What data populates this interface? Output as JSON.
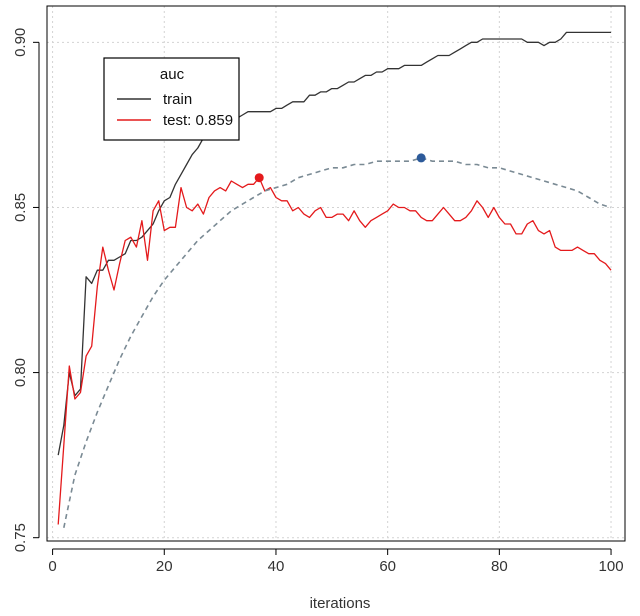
{
  "chart_data": {
    "type": "line",
    "title": "",
    "xlabel": "iterations",
    "ylabel": "",
    "xlim": [
      -1,
      102.5
    ],
    "ylim": [
      0.749,
      0.911
    ],
    "grid": true,
    "x_ticks": [
      0,
      20,
      40,
      60,
      80,
      100
    ],
    "y_ticks": [
      0.75,
      0.8,
      0.85,
      0.9
    ],
    "y_tick_labels": [
      "0.75",
      "0.80",
      "0.85",
      "0.90"
    ],
    "legend": {
      "title": "auc",
      "placement": "top-left",
      "entries": [
        {
          "label": "train",
          "color": "#333333"
        },
        {
          "label": "test: 0.859",
          "color": "#e41a1c"
        }
      ]
    },
    "series": [
      {
        "name": "train",
        "color": "#333333",
        "x_start": 1,
        "values": [
          0.775,
          0.784,
          0.8,
          0.793,
          0.795,
          0.829,
          0.827,
          0.831,
          0.831,
          0.834,
          0.834,
          0.835,
          0.836,
          0.84,
          0.84,
          0.841,
          0.843,
          0.845,
          0.849,
          0.852,
          0.853,
          0.857,
          0.86,
          0.863,
          0.866,
          0.868,
          0.871,
          0.874,
          0.876,
          0.876,
          0.874,
          0.876,
          0.877,
          0.878,
          0.879,
          0.879,
          0.879,
          0.879,
          0.879,
          0.88,
          0.88,
          0.881,
          0.882,
          0.882,
          0.882,
          0.884,
          0.884,
          0.885,
          0.885,
          0.886,
          0.886,
          0.887,
          0.888,
          0.888,
          0.889,
          0.89,
          0.89,
          0.891,
          0.891,
          0.892,
          0.892,
          0.892,
          0.893,
          0.893,
          0.893,
          0.893,
          0.894,
          0.895,
          0.896,
          0.896,
          0.896,
          0.897,
          0.898,
          0.899,
          0.9,
          0.9,
          0.901,
          0.901,
          0.901,
          0.901,
          0.901,
          0.901,
          0.901,
          0.901,
          0.9,
          0.9,
          0.9,
          0.899,
          0.9,
          0.9,
          0.901,
          0.903,
          0.903,
          0.903,
          0.903,
          0.903,
          0.903,
          0.903,
          0.903,
          0.903
        ]
      },
      {
        "name": "test",
        "color": "#e41a1c",
        "x_start": 1,
        "values": [
          0.754,
          0.778,
          0.802,
          0.792,
          0.794,
          0.805,
          0.808,
          0.826,
          0.838,
          0.831,
          0.825,
          0.833,
          0.84,
          0.841,
          0.838,
          0.846,
          0.834,
          0.849,
          0.852,
          0.843,
          0.844,
          0.844,
          0.856,
          0.85,
          0.849,
          0.851,
          0.848,
          0.853,
          0.855,
          0.856,
          0.855,
          0.858,
          0.857,
          0.856,
          0.857,
          0.857,
          0.859,
          0.855,
          0.856,
          0.853,
          0.852,
          0.852,
          0.849,
          0.85,
          0.848,
          0.847,
          0.849,
          0.85,
          0.847,
          0.847,
          0.848,
          0.848,
          0.846,
          0.849,
          0.846,
          0.844,
          0.846,
          0.847,
          0.848,
          0.849,
          0.851,
          0.85,
          0.85,
          0.849,
          0.849,
          0.847,
          0.846,
          0.846,
          0.848,
          0.85,
          0.848,
          0.846,
          0.846,
          0.847,
          0.849,
          0.852,
          0.85,
          0.847,
          0.85,
          0.847,
          0.845,
          0.845,
          0.842,
          0.842,
          0.845,
          0.846,
          0.843,
          0.842,
          0.843,
          0.838,
          0.837,
          0.837,
          0.837,
          0.838,
          0.837,
          0.836,
          0.836,
          0.834,
          0.833,
          0.831
        ]
      },
      {
        "name": "",
        "color": "#7a8a94",
        "dashed": true,
        "x": [
          2,
          4,
          6,
          8,
          10,
          12,
          14,
          16,
          18,
          20,
          22,
          24,
          26,
          28,
          30,
          32,
          34,
          36,
          38,
          40,
          42,
          44,
          46,
          48,
          50,
          52,
          54,
          56,
          58,
          60,
          62,
          64,
          66,
          68,
          70,
          72,
          74,
          76,
          78,
          80,
          82,
          84,
          86,
          88,
          90,
          92,
          94,
          96,
          98,
          100
        ],
        "values": [
          0.753,
          0.769,
          0.779,
          0.788,
          0.796,
          0.804,
          0.811,
          0.817,
          0.823,
          0.828,
          0.832,
          0.836,
          0.84,
          0.843,
          0.846,
          0.849,
          0.851,
          0.853,
          0.855,
          0.856,
          0.857,
          0.859,
          0.86,
          0.861,
          0.862,
          0.862,
          0.863,
          0.863,
          0.864,
          0.864,
          0.864,
          0.864,
          0.865,
          0.864,
          0.864,
          0.864,
          0.863,
          0.863,
          0.862,
          0.862,
          0.861,
          0.86,
          0.859,
          0.858,
          0.857,
          0.856,
          0.855,
          0.853,
          0.851,
          0.85
        ]
      }
    ],
    "markers": [
      {
        "x": 37,
        "y": 0.859,
        "color": "#e41a1c"
      },
      {
        "x": 66,
        "y": 0.865,
        "color": "#2c5a9a"
      }
    ]
  }
}
